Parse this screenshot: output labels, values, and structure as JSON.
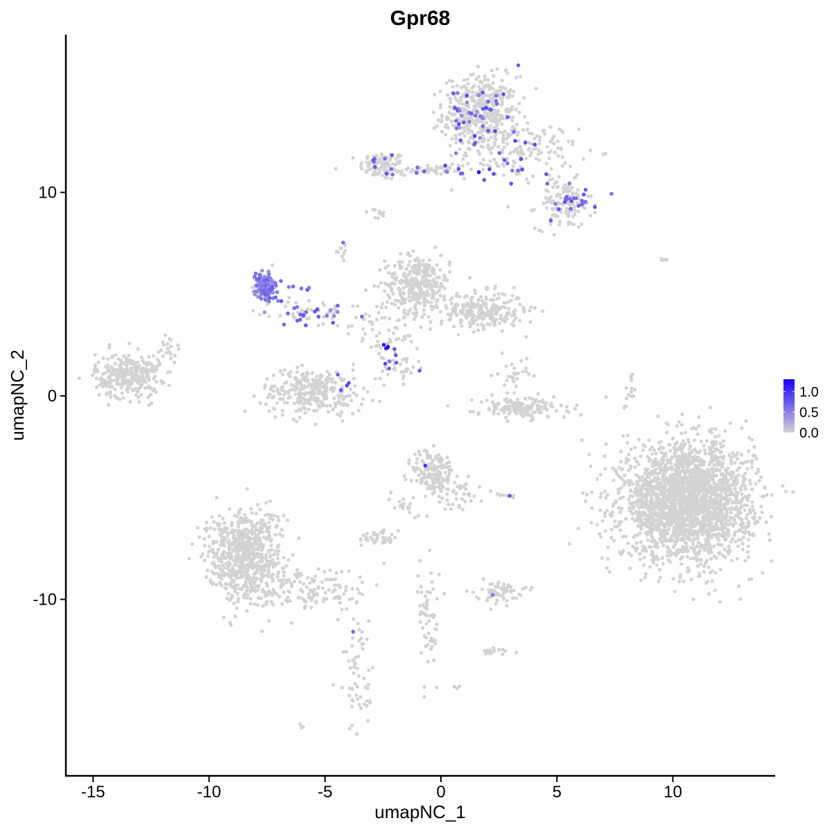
{
  "chart_data": {
    "type": "scatter",
    "title": "Gpr68",
    "xlabel": "umapNC_1",
    "ylabel": "umapNC_2",
    "xlim": [
      -16.5,
      14.4
    ],
    "ylim": [
      -18.5,
      18
    ],
    "x_ticks": [
      -15,
      -10,
      -5,
      0,
      5,
      10
    ],
    "y_ticks": [
      -10,
      0,
      10
    ],
    "x_tick_labels": [
      "-15",
      "-10",
      "-5",
      "0",
      "5",
      "10"
    ],
    "y_tick_labels": [
      "-10",
      "0",
      "10"
    ],
    "grid": false,
    "legend": {
      "placement": "right",
      "type": "colorbar",
      "range": [
        0,
        1.3
      ],
      "ticks": [
        0.0,
        0.5,
        1.0
      ],
      "tick_labels": [
        "0.0",
        "0.5",
        "1.0"
      ],
      "low_color": "#d3d3d3",
      "high_color": "#1a00ff"
    },
    "colors": {
      "low": "#d3d3d3",
      "high": "#1a00ff",
      "axis": "#000000"
    },
    "clusters": [
      {
        "name": "top-left arm",
        "x": -2.5,
        "y": 11.3,
        "sx": 0.5,
        "sy": 0.35,
        "n": 90
      },
      {
        "name": "top bridge",
        "x": -0.5,
        "y": 11.1,
        "sx": 1.0,
        "sy": 0.15,
        "n": 50
      },
      {
        "name": "top hub",
        "x": 1.7,
        "y": 13.9,
        "sx": 0.8,
        "sy": 0.9,
        "n": 420
      },
      {
        "name": "top right arm",
        "x": 3.5,
        "y": 12.0,
        "sx": 1.2,
        "sy": 0.7,
        "n": 140
      },
      {
        "name": "top right lobe",
        "x": 5.3,
        "y": 9.4,
        "sx": 0.6,
        "sy": 0.6,
        "n": 120
      },
      {
        "name": "small upper",
        "x": -2.7,
        "y": 8.9,
        "sx": 0.2,
        "sy": 0.15,
        "n": 10
      },
      {
        "name": "upper center stem",
        "x": -4.3,
        "y": 7.2,
        "sx": 0.2,
        "sy": 0.3,
        "n": 10
      },
      {
        "name": "far right pair",
        "x": 9.5,
        "y": 6.7,
        "sx": 0.2,
        "sy": 0.05,
        "n": 5
      },
      {
        "name": "magenta cluster",
        "x": -7.6,
        "y": 5.4,
        "sx": 0.2,
        "sy": 0.3,
        "n": 130
      },
      {
        "name": "magenta trail",
        "x": -5.6,
        "y": 4.1,
        "sx": 0.8,
        "sy": 0.35,
        "n": 40
      },
      {
        "name": "center right blob",
        "x": -1.0,
        "y": 5.5,
        "sx": 0.7,
        "sy": 0.7,
        "n": 320
      },
      {
        "name": "center right tail",
        "x": 1.8,
        "y": 4.2,
        "sx": 0.9,
        "sy": 0.45,
        "n": 260
      },
      {
        "name": "center scatter",
        "x": -2.5,
        "y": 3.3,
        "sx": 0.8,
        "sy": 0.8,
        "n": 60
      },
      {
        "name": "left blob",
        "x": -13.5,
        "y": 1.0,
        "sx": 0.7,
        "sy": 0.55,
        "n": 300
      },
      {
        "name": "left blob tail",
        "x": -11.7,
        "y": 2.3,
        "sx": 0.3,
        "sy": 0.4,
        "n": 20
      },
      {
        "name": "lower middle blob",
        "x": -5.5,
        "y": 0.2,
        "sx": 1.1,
        "sy": 0.55,
        "n": 300
      },
      {
        "name": "middle stem",
        "x": -1.8,
        "y": 1.5,
        "sx": 0.4,
        "sy": 0.4,
        "n": 30
      },
      {
        "name": "right arc",
        "x": 3.5,
        "y": -0.6,
        "sx": 1.0,
        "sy": 0.25,
        "n": 150
      },
      {
        "name": "right arc top",
        "x": 3.1,
        "y": 0.9,
        "sx": 0.3,
        "sy": 0.5,
        "n": 30
      },
      {
        "name": "far right stem",
        "x": 8.1,
        "y": 0.2,
        "sx": 0.15,
        "sy": 0.5,
        "n": 15
      },
      {
        "name": "big right blob",
        "x": 10.6,
        "y": -5.2,
        "sx": 1.4,
        "sy": 1.4,
        "n": 2400
      },
      {
        "name": "center lower blob",
        "x": -0.3,
        "y": -3.8,
        "sx": 0.45,
        "sy": 0.6,
        "n": 160
      },
      {
        "name": "center lower tail",
        "x": 0.9,
        "y": -4.8,
        "sx": 0.5,
        "sy": 0.4,
        "n": 40
      },
      {
        "name": "center lower arm",
        "x": -1.5,
        "y": -5.3,
        "sx": 0.3,
        "sy": 0.4,
        "n": 20
      },
      {
        "name": "small mid",
        "x": -2.8,
        "y": -7.0,
        "sx": 0.35,
        "sy": 0.2,
        "n": 40
      },
      {
        "name": "small right dot",
        "x": 2.7,
        "y": -4.9,
        "sx": 0.3,
        "sy": 0.05,
        "n": 8
      },
      {
        "name": "small right cluster",
        "x": 2.5,
        "y": -9.6,
        "sx": 0.5,
        "sy": 0.25,
        "n": 60
      },
      {
        "name": "bottom left triangle",
        "x": -8.5,
        "y": -7.8,
        "sx": 0.8,
        "sy": 1.1,
        "n": 700
      },
      {
        "name": "bottom diag tail",
        "x": -5.5,
        "y": -9.5,
        "sx": 1.3,
        "sy": 0.6,
        "n": 140
      },
      {
        "name": "bottom long tail",
        "x": -3.6,
        "y": -13.7,
        "sx": 0.35,
        "sy": 1.5,
        "n": 60
      },
      {
        "name": "bottom strand",
        "x": -0.5,
        "y": -11.2,
        "sx": 0.25,
        "sy": 1.4,
        "n": 60
      },
      {
        "name": "bottom small",
        "x": 2.3,
        "y": -12.6,
        "sx": 0.3,
        "sy": 0.15,
        "n": 15
      },
      {
        "name": "bottom lone",
        "x": -6.0,
        "y": -16.3,
        "sx": 0.1,
        "sy": 0.1,
        "n": 4
      },
      {
        "name": "bottom lone 2",
        "x": 0.7,
        "y": -14.3,
        "sx": 0.1,
        "sy": 0.05,
        "n": 4
      }
    ],
    "expressing_regions": [
      {
        "x": -7.6,
        "y": 5.4,
        "sx": 0.22,
        "sy": 0.35,
        "n": 110,
        "level": [
          0.4,
          0.75
        ]
      },
      {
        "x": -5.6,
        "y": 4.0,
        "sx": 0.7,
        "sy": 0.3,
        "n": 22,
        "level": [
          0.4,
          0.8
        ]
      },
      {
        "x": -6.7,
        "y": 5.4,
        "sx": 0.5,
        "sy": 0.3,
        "n": 10,
        "level": [
          0.5,
          0.9
        ]
      },
      {
        "x": 1.7,
        "y": 13.9,
        "sx": 0.8,
        "sy": 0.9,
        "n": 45,
        "level": [
          0.4,
          0.9
        ]
      },
      {
        "x": -0.3,
        "y": 11.1,
        "sx": 1.3,
        "sy": 0.2,
        "n": 14,
        "level": [
          0.5,
          0.9
        ]
      },
      {
        "x": -2.5,
        "y": 11.3,
        "sx": 0.4,
        "sy": 0.3,
        "n": 6,
        "level": [
          0.5,
          0.9
        ]
      },
      {
        "x": 3.6,
        "y": 11.8,
        "sx": 1.0,
        "sy": 0.6,
        "n": 14,
        "level": [
          0.5,
          0.9
        ]
      },
      {
        "x": 5.6,
        "y": 9.5,
        "sx": 0.5,
        "sy": 0.35,
        "n": 22,
        "level": [
          0.5,
          0.85
        ]
      },
      {
        "x": -2.0,
        "y": 1.5,
        "sx": 0.4,
        "sy": 0.35,
        "n": 8,
        "level": [
          0.5,
          0.9
        ]
      },
      {
        "x": -4.5,
        "y": 0.6,
        "sx": 0.5,
        "sy": 0.3,
        "n": 4,
        "level": [
          0.5,
          0.9
        ]
      },
      {
        "x": -4.3,
        "y": 7.6,
        "sx": 0.05,
        "sy": 0.05,
        "n": 1,
        "level": [
          0.5,
          0.7
        ]
      },
      {
        "x": -0.7,
        "y": -3.4,
        "sx": 0.05,
        "sy": 0.05,
        "n": 1,
        "level": [
          0.9,
          1.0
        ]
      },
      {
        "x": 3.0,
        "y": -4.9,
        "sx": 0.05,
        "sy": 0.05,
        "n": 1,
        "level": [
          0.6,
          0.8
        ]
      },
      {
        "x": 2.3,
        "y": -9.8,
        "sx": 0.05,
        "sy": 0.05,
        "n": 1,
        "level": [
          0.5,
          0.7
        ]
      },
      {
        "x": -3.8,
        "y": -11.6,
        "sx": 0.05,
        "sy": 0.05,
        "n": 1,
        "level": [
          0.5,
          0.7
        ]
      },
      {
        "x": -2.3,
        "y": 2.4,
        "sx": 0.08,
        "sy": 0.05,
        "n": 4,
        "level": [
          1.1,
          1.3
        ]
      },
      {
        "x": 1.6,
        "y": 11.0,
        "sx": 0.05,
        "sy": 0.05,
        "n": 1,
        "level": [
          1.2,
          1.3
        ]
      }
    ]
  }
}
